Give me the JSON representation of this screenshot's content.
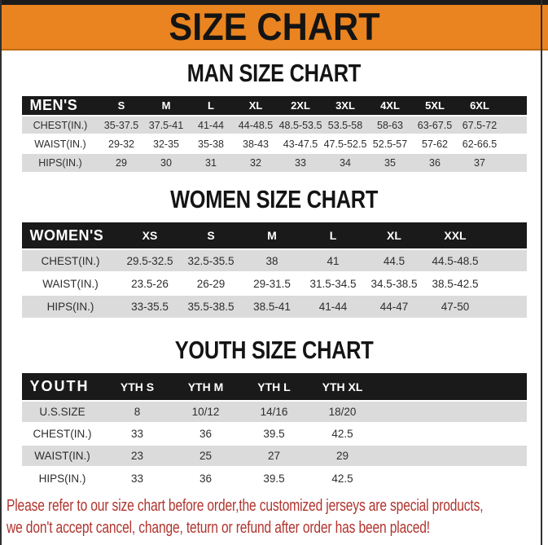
{
  "banner": {
    "title": "SIZE CHART"
  },
  "colors": {
    "accent_orange": "#EA8420",
    "header_black": "#1A1A1A",
    "row_gray": "#DBDBDB",
    "note_red": "#B0342E"
  },
  "sections": [
    {
      "title": "MAN SIZE CHART",
      "table": {
        "header": [
          "MEN'S",
          "S",
          "M",
          "L",
          "XL",
          "2XL",
          "3XL",
          "4XL",
          "5XL",
          "6XL"
        ],
        "rows": [
          [
            "CHEST(IN.)",
            "35-37.5",
            "37.5-41",
            "41-44",
            "44-48.5",
            "48.5-53.5",
            "53.5-58",
            "58-63",
            "63-67.5",
            "67.5-72"
          ],
          [
            "WAIST(IN.)",
            "29-32",
            "32-35",
            "35-38",
            "38-43",
            "43-47.5",
            "47.5-52.5",
            "52.5-57",
            "57-62",
            "62-66.5"
          ],
          [
            "HIPS(IN.)",
            "29",
            "30",
            "31",
            "32",
            "33",
            "34",
            "35",
            "36",
            "37"
          ]
        ]
      }
    },
    {
      "title": "WOMEN SIZE CHART",
      "table": {
        "header": [
          "WOMEN'S",
          "XS",
          "S",
          "M",
          "L",
          "XL",
          "XXL"
        ],
        "rows": [
          [
            "CHEST(IN.)",
            "29.5-32.5",
            "32.5-35.5",
            "38",
            "41",
            "44.5",
            "44.5-48.5"
          ],
          [
            "WAIST(IN.)",
            "23.5-26",
            "26-29",
            "29-31.5",
            "31.5-34.5",
            "34.5-38.5",
            "38.5-42.5"
          ],
          [
            "HIPS(IN.)",
            "33-35.5",
            "35.5-38.5",
            "38.5-41",
            "41-44",
            "44-47",
            "47-50"
          ]
        ]
      }
    },
    {
      "title": "YOUTH SIZE CHART",
      "table": {
        "header": [
          "YOUTH",
          "YTH S",
          "YTH M",
          "YTH L",
          "YTH XL"
        ],
        "rows": [
          [
            "U.S.SIZE",
            "8",
            "10/12",
            "14/16",
            "18/20"
          ],
          [
            "CHEST(IN.)",
            "33",
            "36",
            "39.5",
            "42.5"
          ],
          [
            "WAIST(IN.)",
            "23",
            "25",
            "27",
            "29"
          ],
          [
            "HIPS(IN.)",
            "33",
            "36",
            "39.5",
            "42.5"
          ]
        ]
      }
    }
  ],
  "footer": {
    "line1": "Please refer to our size chart before order,the customized jerseys are special products,",
    "line2": "we don't accept cancel, change, teturn or refund after order has been placed!"
  }
}
